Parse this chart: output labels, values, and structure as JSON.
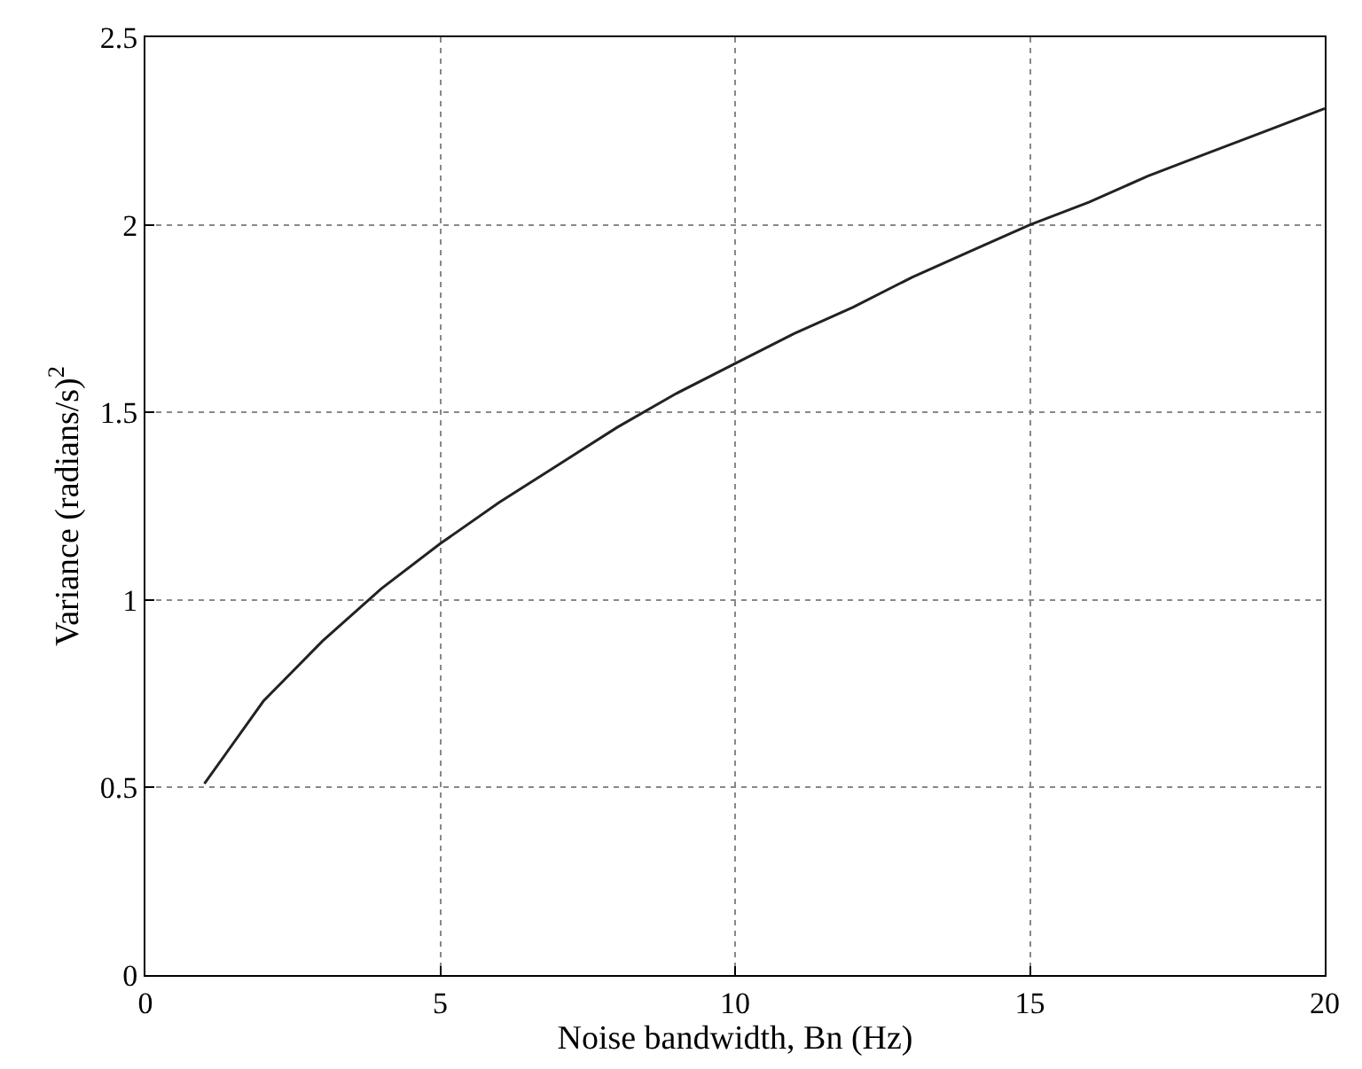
{
  "chart_data": {
    "type": "line",
    "xlabel": "Noise bandwidth, Bn (Hz)",
    "ylabel": "Variance (radians/s)$^{2}$",
    "x": [
      1,
      2,
      3,
      4,
      5,
      6,
      7,
      8,
      9,
      10,
      11,
      12,
      13,
      14,
      15,
      16,
      17,
      18,
      19,
      20
    ],
    "series": [
      {
        "color": "#222222",
        "values": [
          0.51,
          0.73,
          0.89,
          1.03,
          1.15,
          1.26,
          1.36,
          1.46,
          1.55,
          1.63,
          1.71,
          1.78,
          1.86,
          1.93,
          2.0,
          2.06,
          2.13,
          2.19,
          2.25,
          2.31
        ]
      }
    ],
    "xlim": [
      0,
      20
    ],
    "xticks": [
      0,
      5,
      10,
      15,
      20
    ],
    "ylim": [
      0,
      2.5
    ],
    "yticks": [
      0,
      0.5,
      1,
      1.5,
      2,
      2.5
    ],
    "grid": true,
    "line_style": "solid",
    "marker": "none"
  }
}
